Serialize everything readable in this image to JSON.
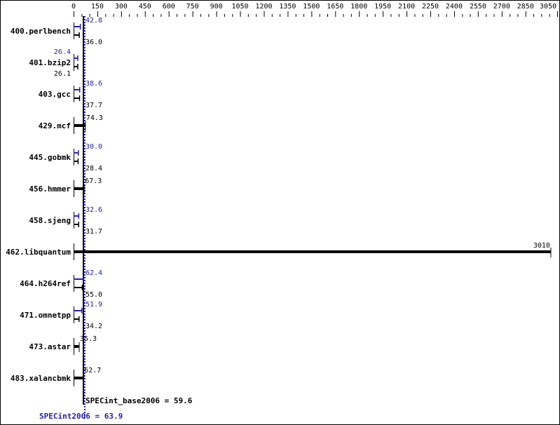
{
  "chart_data": {
    "type": "bar",
    "orientation": "horizontal",
    "xlim": [
      0,
      3050
    ],
    "major_ticks": [
      0,
      150,
      300,
      450,
      600,
      750,
      900,
      1050,
      1200,
      1350,
      1500,
      1650,
      1800,
      1950,
      2100,
      2250,
      2400,
      2550,
      2700,
      2850,
      3050
    ],
    "tick_labels": [
      "0",
      "150",
      "300",
      "450",
      "600",
      "750",
      "900",
      "1050",
      "1200",
      "1350",
      "1500",
      "1650",
      "1800",
      "1950",
      "2100",
      "2250",
      "2400",
      "2550",
      "2700",
      "2850",
      "3050"
    ],
    "categories": [
      "400.perlbench",
      "401.bzip2",
      "403.gcc",
      "429.mcf",
      "445.gobmk",
      "456.hmmer",
      "458.sjeng",
      "462.libquantum",
      "464.h264ref",
      "471.omnetpp",
      "473.astar",
      "483.xalancbmk"
    ],
    "series": [
      {
        "name": "SPECint_base2006",
        "values": [
          36.0,
          26.1,
          37.7,
          74.3,
          28.4,
          67.3,
          31.7,
          3010,
          55.0,
          34.2,
          35.3,
          62.7
        ],
        "labels": [
          "36.0",
          "26.1",
          "37.7",
          "74.3",
          "28.4",
          "67.3",
          "31.7",
          "3010",
          "55.0",
          "34.2",
          "35.3",
          "62.7"
        ]
      },
      {
        "name": "SPECint2006",
        "values": [
          42.8,
          26.4,
          38.6,
          null,
          30.0,
          null,
          32.6,
          null,
          62.4,
          51.9,
          null,
          null
        ],
        "labels": [
          "42.8",
          "26.4",
          "38.6",
          null,
          "30.0",
          null,
          "32.6",
          null,
          "62.4",
          "51.9",
          null,
          null
        ]
      }
    ],
    "reference_lines": [
      {
        "label": "SPECint_base2006 = 59.6",
        "value": 59.6,
        "color": "#000000"
      },
      {
        "label": "SPECint2006 = 63.9",
        "value": 63.9,
        "color": "#2222aa"
      }
    ],
    "colors": {
      "base": "#000000",
      "peak": "#2222aa"
    }
  }
}
